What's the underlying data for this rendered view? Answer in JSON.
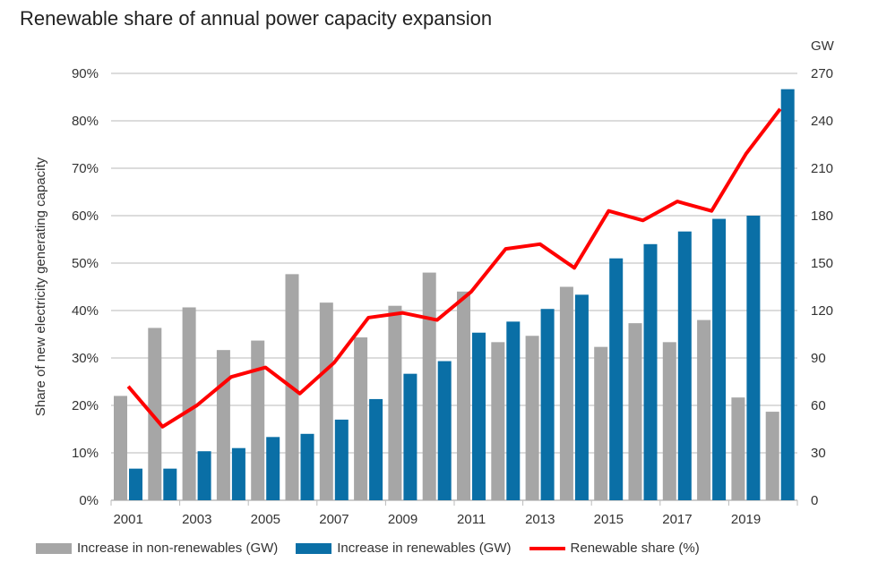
{
  "chart_data": {
    "type": "bar",
    "title": "Renewable share of annual power capacity expansion",
    "ylabel": "Share of new electricity generating capacity",
    "y2label": "GW",
    "ylim": [
      0,
      90
    ],
    "y2lim": [
      0,
      270
    ],
    "yticks": [
      "0%",
      "10%",
      "20%",
      "30%",
      "40%",
      "50%",
      "60%",
      "70%",
      "80%",
      "90%"
    ],
    "y2ticks": [
      "0",
      "30",
      "60",
      "90",
      "120",
      "150",
      "180",
      "210",
      "240",
      "270"
    ],
    "xtick_labels": [
      "2001",
      "2003",
      "2005",
      "2007",
      "2009",
      "2011",
      "2013",
      "2015",
      "2017",
      "2019"
    ],
    "grid": true,
    "legend_position": "bottom",
    "categories": [
      2001,
      2002,
      2003,
      2004,
      2005,
      2006,
      2007,
      2008,
      2009,
      2010,
      2011,
      2012,
      2013,
      2014,
      2015,
      2016,
      2017,
      2018,
      2019,
      2020
    ],
    "series": [
      {
        "name": "Increase in non-renewables (GW)",
        "type": "bar",
        "axis": "right",
        "color": "#a6a6a6",
        "values": [
          66,
          109,
          122,
          95,
          101,
          143,
          125,
          103,
          123,
          144,
          132,
          100,
          104,
          135,
          97,
          112,
          100,
          114,
          65,
          56
        ]
      },
      {
        "name": "Increase in renewables (GW)",
        "type": "bar",
        "axis": "right",
        "color": "#0a6fa6",
        "values": [
          20,
          20,
          31,
          33,
          40,
          42,
          51,
          64,
          80,
          88,
          106,
          113,
          121,
          130,
          153,
          162,
          170,
          178,
          180,
          260
        ]
      },
      {
        "name": "Renewable share (%)",
        "type": "line",
        "axis": "left",
        "color": "#ff0000",
        "values": [
          24,
          15.5,
          20,
          26,
          28,
          22.5,
          29,
          38.5,
          39.5,
          38,
          44,
          53,
          54,
          49,
          61,
          59,
          63,
          61,
          73,
          82.5
        ]
      }
    ]
  }
}
